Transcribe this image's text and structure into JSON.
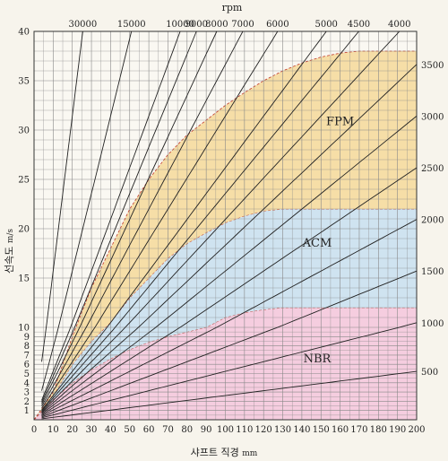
{
  "chart_data": {
    "type": "line",
    "x_label_text": "샤프트 직경",
    "x_unit": "mm",
    "y_label_text": "선속도",
    "y_unit": "m/s",
    "top_axis_title": "rpm",
    "xlim": [
      0,
      200
    ],
    "ylim": [
      0,
      40
    ],
    "x_ticks": [
      0,
      10,
      20,
      30,
      40,
      50,
      60,
      70,
      80,
      90,
      100,
      110,
      120,
      130,
      140,
      150,
      160,
      170,
      180,
      190,
      200
    ],
    "y_ticks": [
      1,
      2,
      3,
      4,
      5,
      6,
      7,
      8,
      9,
      10,
      15,
      20,
      25,
      30,
      35,
      40
    ],
    "y_scale_note": "y axis is stretched for 0-10 then linear to 40",
    "rpm_lines": [
      30000,
      15000,
      10000,
      9000,
      8000,
      7000,
      6000,
      5000,
      4500,
      4000,
      3500,
      3000,
      2500,
      2000,
      1500,
      1000,
      500
    ],
    "rpm_lines_labeled_top": [
      "30000",
      "15000",
      "10000",
      "9000",
      "8000",
      "7000",
      "6000",
      "5000",
      "4500",
      "4000"
    ],
    "rpm_lines_labeled_right": [
      "3500",
      "3000",
      "2500",
      "2000",
      "1500",
      "1000",
      "500"
    ],
    "regions": [
      {
        "name": "FPM",
        "color": "#f4d99a",
        "max_speed": [
          [
            10,
            3
          ],
          [
            20,
            9
          ],
          [
            30,
            14
          ],
          [
            40,
            18
          ],
          [
            50,
            22
          ],
          [
            60,
            25
          ],
          [
            70,
            27.5
          ],
          [
            80,
            29.5
          ],
          [
            90,
            31
          ],
          [
            100,
            32.5
          ],
          [
            110,
            33.8
          ],
          [
            120,
            35
          ],
          [
            130,
            36
          ],
          [
            140,
            36.8
          ],
          [
            150,
            37.4
          ],
          [
            160,
            37.8
          ],
          [
            170,
            38
          ],
          [
            200,
            38
          ]
        ]
      },
      {
        "name": "ACM",
        "color": "#c7dff0",
        "max_speed": [
          [
            10,
            2.6
          ],
          [
            20,
            6
          ],
          [
            30,
            8.5
          ],
          [
            40,
            10.5
          ],
          [
            50,
            13
          ],
          [
            60,
            15
          ],
          [
            70,
            17
          ],
          [
            80,
            18.5
          ],
          [
            90,
            19.6
          ],
          [
            100,
            20.6
          ],
          [
            110,
            21.3
          ],
          [
            120,
            21.8
          ],
          [
            130,
            22
          ],
          [
            140,
            22
          ],
          [
            200,
            22
          ]
        ]
      },
      {
        "name": "NBR",
        "color": "#f3c6dc",
        "max_speed": [
          [
            10,
            2.2
          ],
          [
            20,
            4
          ],
          [
            30,
            5.4
          ],
          [
            40,
            6.6
          ],
          [
            50,
            7.6
          ],
          [
            60,
            8.4
          ],
          [
            70,
            9
          ],
          [
            80,
            9.5
          ],
          [
            90,
            10
          ],
          [
            100,
            11
          ],
          [
            110,
            11.5
          ],
          [
            120,
            11.8
          ],
          [
            130,
            12
          ],
          [
            200,
            12
          ]
        ]
      }
    ]
  }
}
